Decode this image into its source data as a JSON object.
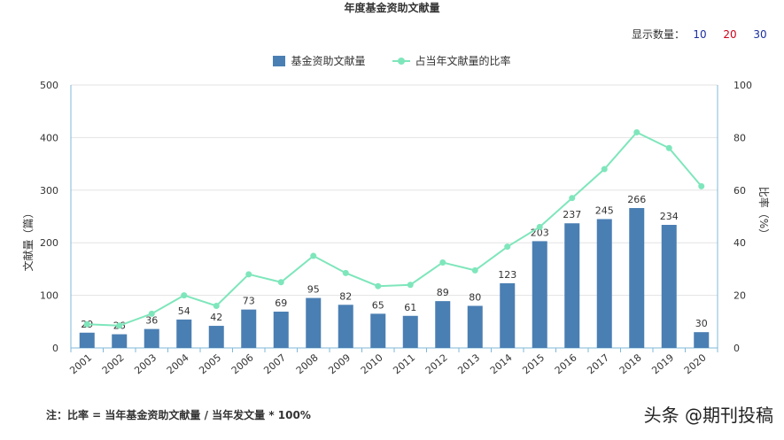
{
  "header": {
    "title": "年度基金资助文献量",
    "show_count_label": "显示数量：",
    "show_count_options": [
      "10",
      "20",
      "30"
    ]
  },
  "footnote": "注：比率 = 当年基金资助文献量 / 当年发文量 * 100%",
  "watermark": "头条 @期刊投稿",
  "colors": {
    "bar": "#4a7fb3",
    "line": "#7ee6bb",
    "axis": "#7fb9d9",
    "grid": "#e3e3e3"
  },
  "chart_data": {
    "type": "bar+line",
    "title": "年度基金资助文献量",
    "categories": [
      "2001",
      "2002",
      "2003",
      "2004",
      "2005",
      "2006",
      "2007",
      "2008",
      "2009",
      "2010",
      "2011",
      "2012",
      "2013",
      "2014",
      "2015",
      "2016",
      "2017",
      "2018",
      "2019",
      "2020"
    ],
    "series": [
      {
        "name": "基金资助文献量",
        "type": "bar",
        "axis": "left",
        "values": [
          29,
          26,
          36,
          54,
          42,
          73,
          69,
          95,
          82,
          65,
          61,
          89,
          80,
          123,
          203,
          237,
          245,
          266,
          234,
          30
        ]
      },
      {
        "name": "占当年文献量的比率",
        "type": "line",
        "axis": "right",
        "values": [
          9,
          8.5,
          13,
          20,
          16,
          28,
          25,
          35,
          28.5,
          23.5,
          24,
          32.5,
          29.5,
          38.5,
          46,
          57,
          68,
          82,
          76,
          61.5
        ]
      }
    ],
    "ylabel_left": "文献量（篇）",
    "ylabel_right": "比率（%）",
    "ylim_left": [
      0,
      500
    ],
    "ylim_right": [
      0,
      100
    ],
    "yticks_left": [
      0,
      100,
      200,
      300,
      400,
      500
    ],
    "yticks_right": [
      0,
      20,
      40,
      60,
      80,
      100
    ],
    "grid": true,
    "legend_position": "top-center"
  }
}
